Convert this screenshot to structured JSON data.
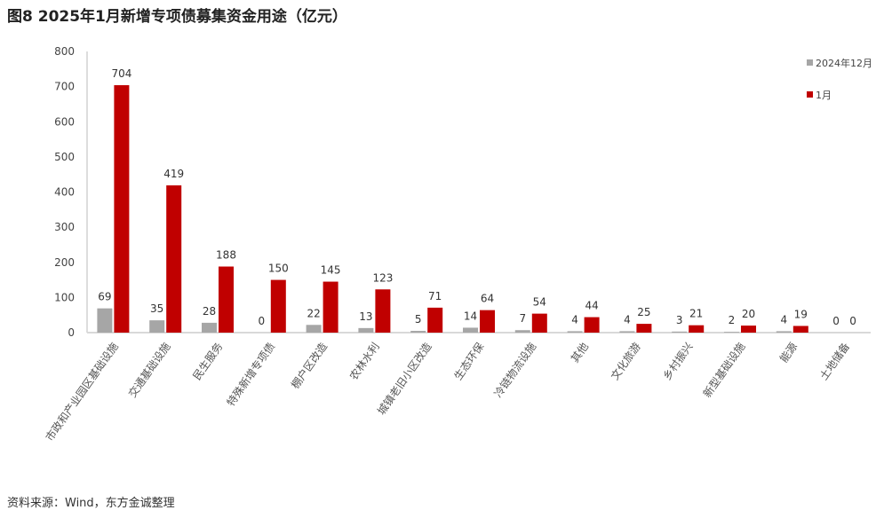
{
  "title": "图8 2025年1月新增专项债募集资金用途（亿元）",
  "source": "资料来源：Wind，东方金诚整理",
  "chart_data": {
    "type": "bar",
    "title": "图8 2025年1月新增专项债募集资金用途（亿元）",
    "categories": [
      "市政和产业园区基础设施",
      "交通基础设施",
      "民生服务",
      "特殊新增专项债",
      "棚户区改造",
      "农林水利",
      "城镇老旧小区改造",
      "生态环保",
      "冷链物流设施",
      "其他",
      "文化旅游",
      "乡村振兴",
      "新型基础设施",
      "能源",
      "土地储备"
    ],
    "series": [
      {
        "name": "2024年12月",
        "color": "#a6a6a6",
        "values": [
          69,
          35,
          28,
          0,
          22,
          13,
          5,
          14,
          7,
          4,
          4,
          3,
          2,
          4,
          0
        ]
      },
      {
        "name": "1月",
        "color": "#c00000",
        "values": [
          704,
          419,
          188,
          150,
          145,
          123,
          71,
          64,
          54,
          44,
          25,
          21,
          20,
          19,
          0
        ]
      }
    ],
    "ylim": [
      0,
      800
    ],
    "yticks": [
      0,
      100,
      200,
      300,
      400,
      500,
      600,
      700,
      800
    ],
    "grid": false,
    "legend": "top-right"
  }
}
